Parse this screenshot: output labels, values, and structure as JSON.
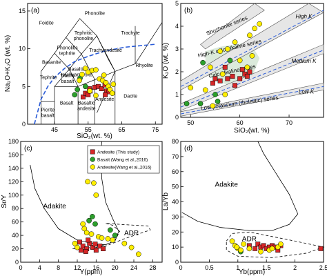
{
  "chart_data": [
    {
      "id": "a",
      "type": "scatter",
      "panel_label": "(a)",
      "xlabel": "SiO₂(wt. %)",
      "ylabel": "Na₂O+K₂O (wt. %)",
      "xlim": [
        37,
        77
      ],
      "ylim": [
        0,
        16
      ],
      "xticks": [
        45,
        55,
        65,
        75
      ],
      "yticks": [
        0,
        5,
        10,
        15
      ],
      "field_labels": [
        "Foidite",
        "Phonolite",
        "Tephritic phonolite",
        "Phonolitic tephrite",
        "Trachyandesite",
        "Trachyte",
        "Basanite",
        "Basaltic trachyandesite",
        "Tephrite",
        "Trachy basalt",
        "Rhyolite",
        "Picrite basalt",
        "Basalt",
        "Basaltic andesite",
        "Andesite",
        "Dacite"
      ],
      "series": [
        {
          "name": "Andesite (This study)",
          "marker": "square",
          "color": "#d62728",
          "points": [
            [
              53.5,
              3.6
            ],
            [
              54.2,
              4.1
            ],
            [
              55.0,
              3.9
            ],
            [
              55.6,
              4.4
            ],
            [
              57.0,
              4.9
            ],
            [
              58.0,
              5.0
            ],
            [
              59.0,
              4.7
            ],
            [
              60.0,
              5.2
            ],
            [
              60.5,
              4.4
            ],
            [
              61.2,
              4.3
            ],
            [
              60.1,
              3.9
            ],
            [
              55.4,
              4.7
            ]
          ]
        },
        {
          "name": "Basalt (Wang et al., 2016)",
          "marker": "circle",
          "color": "#2ca02c",
          "points": [
            [
              51.0,
              3.9
            ],
            [
              51.8,
              4.6
            ],
            [
              52.6,
              6.1
            ],
            [
              54.2,
              5.0
            ]
          ]
        },
        {
          "name": "Andesite (Wang et al., 2016)",
          "marker": "circle",
          "color": "#ffee00",
          "points": [
            [
              52.4,
              5.8
            ],
            [
              53.2,
              6.6
            ],
            [
              54.2,
              7.4
            ],
            [
              55.0,
              6.9
            ],
            [
              56.2,
              7.1
            ],
            [
              57.3,
              7.2
            ],
            [
              58.4,
              6.0
            ],
            [
              59.3,
              5.8
            ],
            [
              60.3,
              5.5
            ],
            [
              61.0,
              5.0
            ],
            [
              61.5,
              4.6
            ],
            [
              62.2,
              4.1
            ],
            [
              62.5,
              5.3
            ],
            [
              57.3,
              3.8
            ],
            [
              55.5,
              4.4
            ],
            [
              59.7,
              6.5
            ]
          ]
        }
      ]
    },
    {
      "id": "b",
      "type": "scatter",
      "panel_label": "(b)",
      "xlabel": "SiO₂(wt. %)",
      "ylabel": "K₂O (wt. %)",
      "xlim": [
        48,
        77
      ],
      "ylim": [
        0,
        5
      ],
      "xticks": [
        50,
        60,
        70
      ],
      "yticks": [
        0,
        1,
        2,
        3,
        4,
        5
      ],
      "series_labels": [
        "Shoshonite series",
        "High-K calc-alkaline series",
        "Calc-alkaline series",
        "Low potassium (tholeiitic) series"
      ],
      "region_labels": [
        "High K",
        "Medium K",
        "Low K"
      ],
      "series": [
        {
          "name": "Andesite (This study)",
          "marker": "square",
          "color": "#d62728",
          "points": [
            [
              54.5,
              1.5
            ],
            [
              56.0,
              1.6
            ],
            [
              57.5,
              1.7
            ],
            [
              58.5,
              1.8
            ],
            [
              60.0,
              1.7
            ],
            [
              61.0,
              1.9
            ],
            [
              61.5,
              1.8
            ],
            [
              62.0,
              2.0
            ],
            [
              60.5,
              2.1
            ],
            [
              59.0,
              1.4
            ],
            [
              57.0,
              2.2
            ],
            [
              55.0,
              1.7
            ]
          ]
        },
        {
          "name": "Basalt (Wang et al., 2016)",
          "marker": "circle",
          "color": "#2ca02c",
          "points": [
            [
              49.2,
              0.6
            ],
            [
              52.0,
              0.6
            ],
            [
              52.5,
              2.4
            ],
            [
              55.5,
              0.7
            ],
            [
              55.0,
              1.0
            ],
            [
              58.0,
              2.5
            ]
          ]
        },
        {
          "name": "Andesite (Wang et al., 2016)",
          "marker": "circle",
          "color": "#ffee00",
          "points": [
            [
              50.0,
              1.3
            ],
            [
              53.0,
              1.2
            ],
            [
              54.0,
              2.2
            ],
            [
              56.0,
              2.9
            ],
            [
              57.5,
              3.0
            ],
            [
              59.0,
              3.3
            ],
            [
              62.0,
              3.6
            ],
            [
              63.0,
              3.9
            ],
            [
              64.0,
              4.1
            ],
            [
              62.5,
              2.7
            ],
            [
              60.0,
              2.5
            ],
            [
              61.5,
              2.2
            ],
            [
              57.0,
              1.0
            ],
            [
              54.5,
              0.5
            ],
            [
              56.5,
              1.9
            ]
          ]
        }
      ]
    },
    {
      "id": "c",
      "type": "scatter",
      "panel_label": "(c)",
      "xlabel": "Y(ppm)",
      "ylabel": "Sr/Y",
      "xlim": [
        0,
        30
      ],
      "ylim": [
        0,
        180
      ],
      "xticks": [
        0,
        4,
        8,
        12,
        16,
        20,
        24,
        28
      ],
      "yticks": [
        0,
        20,
        40,
        60,
        80,
        100,
        120,
        140,
        160,
        180
      ],
      "region_labels": [
        "Adakite",
        "ADR"
      ],
      "legend_entries": [
        "Andesite (This study)",
        "Basalt (Wang et al.,2016)",
        "Andesite(Wang et al.,2016)"
      ],
      "series": [
        {
          "name": "Andesite (This study)",
          "marker": "square",
          "color": "#d62728",
          "points": [
            [
              12.5,
              30
            ],
            [
              13.2,
              24
            ],
            [
              14.0,
              20
            ],
            [
              14.6,
              28
            ],
            [
              15.3,
              22
            ],
            [
              16.0,
              18
            ],
            [
              16.8,
              24
            ],
            [
              17.5,
              20
            ],
            [
              12.8,
              18
            ],
            [
              15.8,
              27
            ],
            [
              14.3,
              33
            ],
            [
              13.8,
              16
            ]
          ]
        },
        {
          "name": "Basalt (Wang et al., 2016)",
          "marker": "circle",
          "color": "#2ca02c",
          "points": [
            [
              14.5,
              62
            ],
            [
              15.2,
              68
            ],
            [
              15.8,
              57
            ],
            [
              20.0,
              40
            ],
            [
              19.0,
              48
            ]
          ]
        },
        {
          "name": "Andesite (Wang et al., 2016)",
          "marker": "circle",
          "color": "#ffee00",
          "points": [
            [
              14.2,
              120
            ],
            [
              15.5,
              118
            ],
            [
              16.0,
              100
            ],
            [
              13.2,
              57
            ],
            [
              13.5,
              50
            ],
            [
              14.0,
              44
            ],
            [
              15.0,
              42
            ],
            [
              16.5,
              38
            ],
            [
              17.2,
              36
            ],
            [
              18.5,
              35
            ],
            [
              19.5,
              33
            ],
            [
              22.0,
              28
            ],
            [
              23.5,
              22
            ],
            [
              25.0,
              12
            ],
            [
              12.0,
              22
            ],
            [
              11.5,
              28
            ]
          ]
        }
      ]
    },
    {
      "id": "d",
      "type": "scatter",
      "panel_label": "(d)",
      "xlabel": "Yb(ppm)",
      "ylabel": "La/Yb",
      "xlim": [
        0,
        2.5
      ],
      "ylim": [
        0,
        80
      ],
      "xticks": [
        0.0,
        0.5,
        1.0,
        1.5,
        2.0,
        2.5
      ],
      "yticks": [
        0,
        10,
        20,
        30,
        40,
        50,
        60,
        70,
        80
      ],
      "region_labels": [
        "Adakite",
        "ADR"
      ],
      "series": [
        {
          "name": "Andesite (This study)",
          "marker": "square",
          "color": "#d62728",
          "points": [
            [
              1.2,
              11
            ],
            [
              1.3,
              9
            ],
            [
              1.35,
              12
            ],
            [
              1.4,
              10
            ],
            [
              1.45,
              11
            ],
            [
              1.5,
              9
            ],
            [
              1.55,
              10
            ],
            [
              1.6,
              11
            ],
            [
              1.65,
              10
            ],
            [
              1.7,
              8
            ],
            [
              1.75,
              11
            ],
            [
              2.45,
              9
            ]
          ]
        },
        {
          "name": "Basalt (Wang et al., 2016)",
          "marker": "circle",
          "color": "#2ca02c",
          "points": [
            [
              1.05,
              7
            ]
          ]
        },
        {
          "name": "Andesite (Wang et al., 2016)",
          "marker": "circle",
          "color": "#ffee00",
          "points": [
            [
              0.9,
              14
            ],
            [
              0.95,
              11
            ],
            [
              1.0,
              9
            ],
            [
              1.05,
              8
            ],
            [
              1.1,
              12
            ],
            [
              1.4,
              7
            ],
            [
              1.55,
              8
            ],
            [
              1.6,
              9
            ],
            [
              1.7,
              10
            ],
            [
              1.75,
              12
            ],
            [
              0.98,
              10
            ],
            [
              1.2,
              9
            ]
          ]
        }
      ]
    }
  ]
}
